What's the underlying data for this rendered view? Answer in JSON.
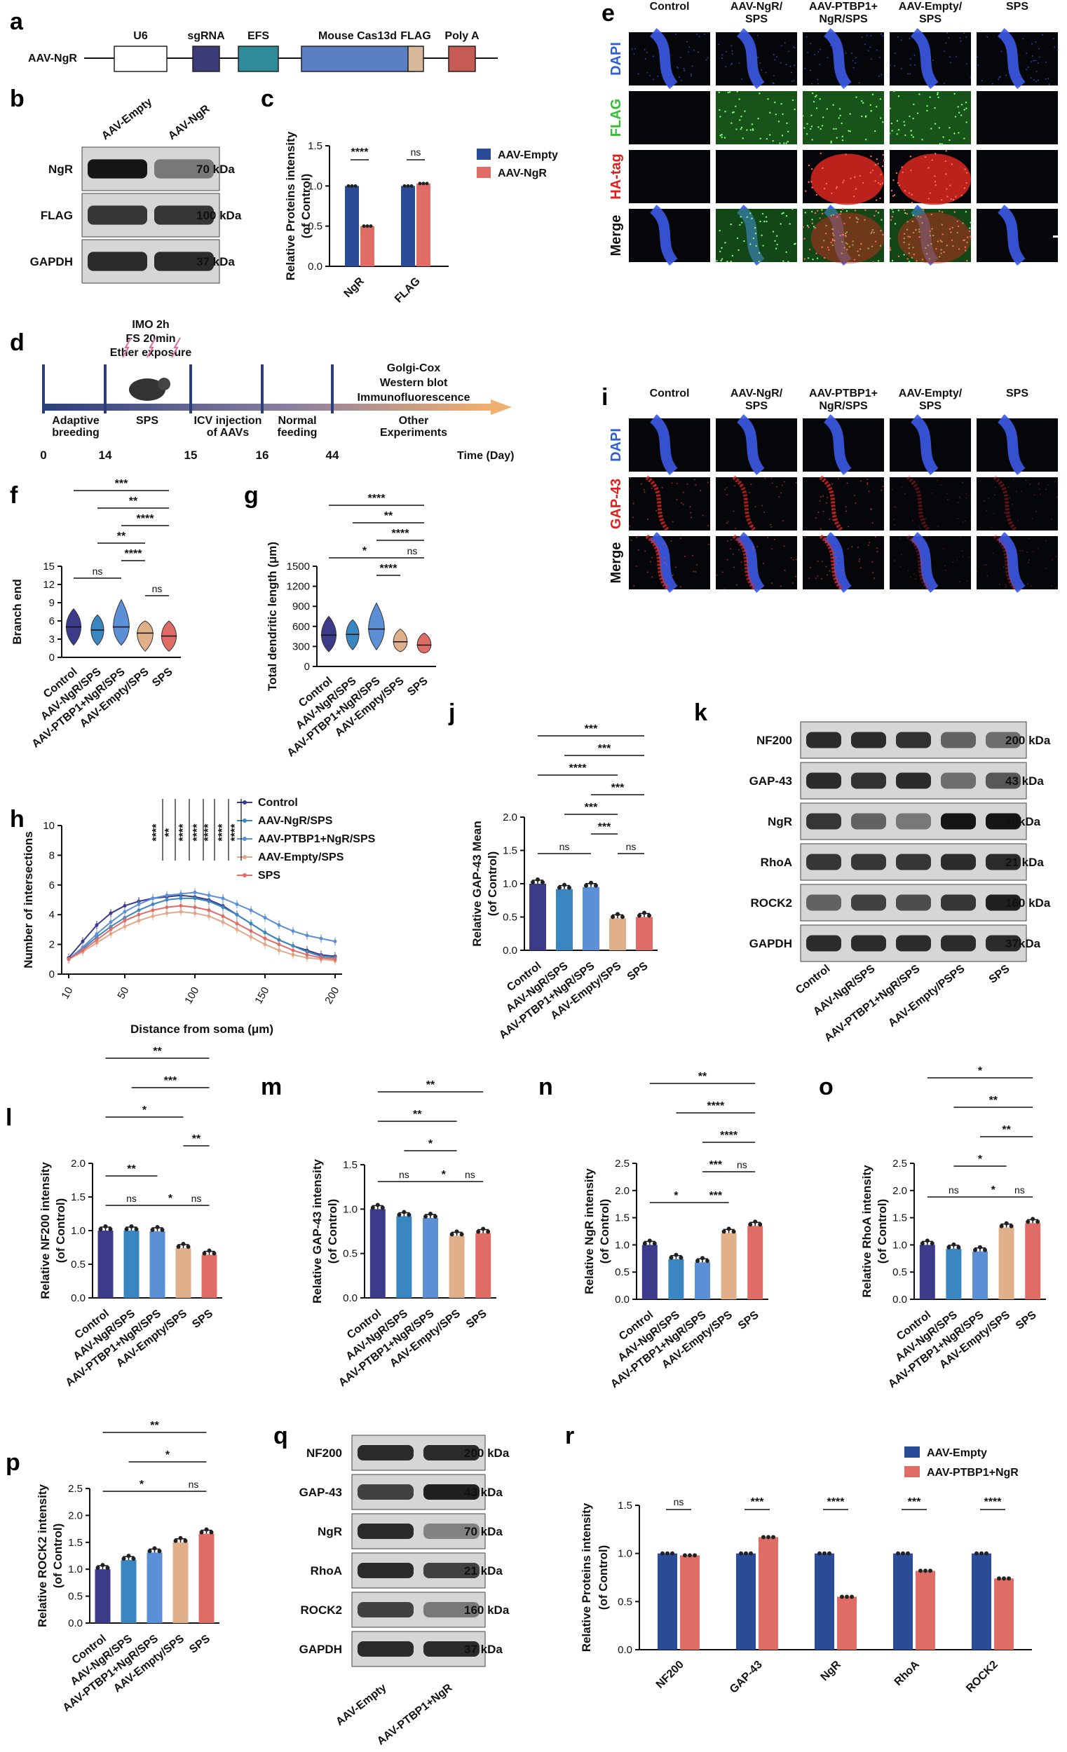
{
  "panel_a": {
    "label": "a",
    "construct": "AAV-NgR",
    "elements": [
      {
        "name": "U6",
        "color": "#ffffff"
      },
      {
        "name": "sgRNA",
        "color": "#3b3b7a"
      },
      {
        "name": "EFS",
        "color": "#2e8b9a"
      },
      {
        "name": "Mouse Cas13d",
        "color": "#5b7fc4"
      },
      {
        "name": "FLAG",
        "color": "#d7b89a"
      },
      {
        "name": "Poly A",
        "color": "#c75b55"
      }
    ]
  },
  "panel_b": {
    "label": "b",
    "columns": [
      "AAV-Empty",
      "AAV-NgR"
    ],
    "rows": [
      {
        "name": "NgR",
        "kda": "70 kDa",
        "intensity": [
          0.95,
          0.5
        ]
      },
      {
        "name": "FLAG",
        "kda": "100 kDa",
        "intensity": [
          0.8,
          0.8
        ]
      },
      {
        "name": "GAPDH",
        "kda": "37 kDa",
        "intensity": [
          0.85,
          0.85
        ]
      }
    ]
  },
  "panel_c": {
    "label": "c",
    "chart_data": {
      "type": "bar",
      "categories": [
        "NgR",
        "FLAG"
      ],
      "series": [
        {
          "name": "AAV-Empty",
          "color": "#2a4b96",
          "values": [
            1.0,
            1.0
          ]
        },
        {
          "name": "AAV-NgR",
          "color": "#e06c66",
          "values": [
            0.5,
            1.03
          ]
        }
      ],
      "ylabel": "Relative Proteins intensity\n(of Control)",
      "ylim": [
        0,
        1.5
      ],
      "yticks": [
        "0.0",
        "0.5",
        "1.0",
        "1.5"
      ],
      "significance": [
        "****",
        "ns"
      ]
    }
  },
  "panel_d": {
    "label": "d",
    "stress": [
      "IMO 2h",
      "FS 20min",
      "Ether exposure"
    ],
    "segments": [
      "Adaptive\nbreeding",
      "SPS",
      "ICV injection\nof AAVs",
      "Normal\nfeeding",
      "Other\nExperiments"
    ],
    "days": [
      "0",
      "14",
      "15",
      "16",
      "44"
    ],
    "experiments": [
      "Golgi-Cox",
      "Western blot",
      "Immunofluorescence"
    ],
    "axis_label": "Time (Day)"
  },
  "panel_e": {
    "label": "e",
    "columns": [
      "Control",
      "AAV-NgR/\nSPS",
      "AAV-PTBP1+\nNgR/SPS",
      "AAV-Empty/\nSPS",
      "SPS"
    ],
    "rows": [
      {
        "name": "DAPI",
        "color": "#2f5fd0"
      },
      {
        "name": "FLAG",
        "color": "#2fbf2f"
      },
      {
        "name": "HA-tag",
        "color": "#e02020"
      },
      {
        "name": "Merge",
        "color": "#111111"
      }
    ]
  },
  "panel_i": {
    "label": "i",
    "columns": [
      "Control",
      "AAV-NgR/\nSPS",
      "AAV-PTBP1+\nNgR/SPS",
      "AAV-Empty/\nSPS",
      "SPS"
    ],
    "rows": [
      {
        "name": "DAPI",
        "color": "#2f5fd0"
      },
      {
        "name": "GAP-43",
        "color": "#e02020"
      },
      {
        "name": "Merge",
        "color": "#111111"
      }
    ]
  },
  "groups": [
    "Control",
    "AAV-NgR/SPS",
    "AAV-PTBP1+NgR/SPS",
    "AAV-Empty/SPS",
    "SPS"
  ],
  "group_colors": [
    "#3b3b8a",
    "#3a86c0",
    "#5b8fd6",
    "#e0b08a",
    "#e06c66"
  ],
  "panel_f": {
    "label": "f",
    "chart_data": {
      "type": "violin",
      "ylabel": "Branch end",
      "ylim": [
        0,
        15
      ],
      "yticks": [
        "0",
        "3",
        "6",
        "9",
        "12",
        "15"
      ],
      "medians": [
        5,
        4.5,
        5,
        4,
        3.5
      ],
      "significance": [
        "***",
        "**",
        "****",
        "**",
        "****",
        "ns",
        "ns"
      ]
    }
  },
  "panel_g": {
    "label": "g",
    "chart_data": {
      "type": "violin",
      "ylabel": "Total dendritic length (μm)",
      "ylim": [
        0,
        1500
      ],
      "yticks": [
        "0",
        "300",
        "600",
        "900",
        "1200",
        "1500"
      ],
      "medians": [
        470,
        480,
        560,
        370,
        320
      ],
      "significance": [
        "****",
        "**",
        "****",
        "*",
        "ns",
        "****"
      ]
    }
  },
  "panel_h": {
    "label": "h",
    "chart_data": {
      "type": "line",
      "x": [
        10,
        20,
        30,
        40,
        50,
        60,
        70,
        80,
        90,
        100,
        110,
        120,
        130,
        140,
        150,
        160,
        170,
        180,
        190,
        200
      ],
      "xticks": [
        "10",
        "50",
        "100",
        "150",
        "200"
      ],
      "xlabel": "Distance from soma  (μm)",
      "ylabel": "Number of intersections",
      "ylim": [
        0,
        10
      ],
      "yticks": [
        "0",
        "2",
        "4",
        "6",
        "8",
        "10"
      ],
      "series": [
        {
          "name": "Control",
          "color": "#3b3b8a",
          "values": [
            1.1,
            2.2,
            3.3,
            4.1,
            4.6,
            4.9,
            5.1,
            5.2,
            5.3,
            5.2,
            5.0,
            4.6,
            4.0,
            3.4,
            2.8,
            2.3,
            1.9,
            1.6,
            1.3,
            1.2
          ]
        },
        {
          "name": "AAV-NgR/SPS",
          "color": "#3a86c0",
          "values": [
            1.0,
            1.7,
            2.5,
            3.2,
            3.8,
            4.3,
            4.7,
            5.0,
            5.1,
            5.1,
            4.9,
            4.5,
            4.0,
            3.4,
            2.8,
            2.3,
            1.9,
            1.5,
            1.2,
            1.1
          ]
        },
        {
          "name": "AAV-PTBP1+NgR/SPS",
          "color": "#5b8fd6",
          "values": [
            1.0,
            1.8,
            2.7,
            3.5,
            4.2,
            4.7,
            5.1,
            5.3,
            5.4,
            5.5,
            5.3,
            5.1,
            4.7,
            4.3,
            3.8,
            3.3,
            2.9,
            2.6,
            2.4,
            2.2
          ]
        },
        {
          "name": "AAV-Empty/SPS",
          "color": "#e0a888",
          "values": [
            1.0,
            1.5,
            2.1,
            2.7,
            3.2,
            3.6,
            3.9,
            4.1,
            4.2,
            4.1,
            3.9,
            3.5,
            3.0,
            2.5,
            2.0,
            1.6,
            1.3,
            1.1,
            1.0,
            0.9
          ]
        },
        {
          "name": "SPS",
          "color": "#e06c66",
          "values": [
            1.0,
            1.6,
            2.3,
            3.0,
            3.6,
            4.0,
            4.3,
            4.5,
            4.6,
            4.5,
            4.3,
            3.9,
            3.4,
            2.9,
            2.4,
            2.0,
            1.6,
            1.3,
            1.1,
            1.0
          ]
        }
      ],
      "significance": [
        "****",
        "**",
        "****",
        "****",
        "****",
        "****",
        "****"
      ]
    }
  },
  "panel_j": {
    "label": "j",
    "chart_data": {
      "type": "bar",
      "ylabel": "Relative GAP-43 Mean\n(of Control)",
      "ylim": [
        0,
        2.0
      ],
      "yticks": [
        "0.0",
        "0.5",
        "1.0",
        "1.5",
        "2.0"
      ],
      "values": [
        1.0,
        0.92,
        0.95,
        0.48,
        0.5
      ],
      "significance": [
        "***",
        "***",
        "****",
        "***",
        "***",
        "ns",
        "ns",
        "***"
      ]
    }
  },
  "panel_k": {
    "label": "k",
    "rows": [
      {
        "name": "NF200",
        "kda": "200 kDa",
        "intensity": [
          0.85,
          0.85,
          0.82,
          0.6,
          0.55
        ]
      },
      {
        "name": "GAP-43",
        "kda": "43 kDa",
        "intensity": [
          0.85,
          0.82,
          0.85,
          0.55,
          0.65
        ]
      },
      {
        "name": "NgR",
        "kda": "70kDa",
        "intensity": [
          0.8,
          0.6,
          0.5,
          0.95,
          0.95
        ]
      },
      {
        "name": "RhoA",
        "kda": "21 kDa",
        "intensity": [
          0.8,
          0.8,
          0.8,
          0.85,
          0.85
        ]
      },
      {
        "name": "ROCK2",
        "kda": "160 kDa",
        "intensity": [
          0.6,
          0.75,
          0.7,
          0.8,
          0.9
        ]
      },
      {
        "name": "GAPDH",
        "kda": "37kDa",
        "intensity": [
          0.85,
          0.85,
          0.85,
          0.85,
          0.85
        ]
      }
    ],
    "columns": [
      "Control",
      "AAV-NgR/SPS",
      "AAV-PTBP1+NgR/SPS",
      "AAV-Empty/PSPS",
      "SPS"
    ]
  },
  "panel_l": {
    "label": "l",
    "chart_data": {
      "type": "bar",
      "ylabel": "Relative NF200 intensity\n(of Control)",
      "ylim": [
        0,
        2.0
      ],
      "yticks": [
        "0.0",
        "0.5",
        "1.0",
        "1.5",
        "2.0"
      ],
      "values": [
        1.0,
        1.0,
        0.99,
        0.74,
        0.64
      ],
      "significance": [
        "**",
        "***",
        "*",
        "**",
        "**",
        "ns",
        "*",
        "ns"
      ]
    }
  },
  "panel_m": {
    "label": "m",
    "chart_data": {
      "type": "bar",
      "ylabel": "Relative GAP-43 intensity\n(of Control)",
      "ylim": [
        0,
        1.5
      ],
      "yticks": [
        "0.0",
        "0.5",
        "1.0",
        "1.5"
      ],
      "values": [
        1.0,
        0.92,
        0.9,
        0.7,
        0.73
      ],
      "significance": [
        "**",
        "**",
        "*",
        "ns",
        "*",
        "ns"
      ]
    }
  },
  "panel_n": {
    "label": "n",
    "chart_data": {
      "type": "bar",
      "ylabel": "Relative NgR intensity\n(of Control)",
      "ylim": [
        0,
        2.5
      ],
      "yticks": [
        "0.0",
        "0.5",
        "1.0",
        "1.5",
        "2.0",
        "2.5"
      ],
      "values": [
        1.0,
        0.74,
        0.68,
        1.22,
        1.35
      ],
      "significance": [
        "**",
        "****",
        "****",
        "***",
        "ns",
        "*",
        "***"
      ]
    }
  },
  "panel_o": {
    "label": "o",
    "chart_data": {
      "type": "bar",
      "ylabel": "Relative RhoA intensity\n(of Control)",
      "ylim": [
        0,
        2.5
      ],
      "yticks": [
        "0.0",
        "0.5",
        "1.0",
        "1.5",
        "2.0",
        "2.5"
      ],
      "values": [
        1.0,
        0.93,
        0.88,
        1.32,
        1.4
      ],
      "significance": [
        "*",
        "**",
        "**",
        "*",
        "ns",
        "*",
        "ns"
      ]
    }
  },
  "panel_p": {
    "label": "p",
    "chart_data": {
      "type": "bar",
      "ylabel": "Relative ROCK2 intensity\n(of Control)",
      "ylim": [
        0,
        2.5
      ],
      "yticks": [
        "0.0",
        "0.5",
        "1.0",
        "1.5",
        "2.0",
        "2.5"
      ],
      "values": [
        1.0,
        1.17,
        1.31,
        1.5,
        1.66
      ],
      "significance": [
        "**",
        "*",
        "*",
        "ns"
      ]
    }
  },
  "panel_q": {
    "label": "q",
    "columns": [
      "AAV-Empty",
      "AAV-PTBP1+NgR"
    ],
    "rows": [
      {
        "name": "NF200",
        "kda": "200 kDa",
        "intensity": [
          0.85,
          0.85
        ]
      },
      {
        "name": "GAP-43",
        "kda": "43 kDa",
        "intensity": [
          0.75,
          0.9
        ]
      },
      {
        "name": "NgR",
        "kda": "70 kDa",
        "intensity": [
          0.85,
          0.45
        ]
      },
      {
        "name": "RhoA",
        "kda": "21 kDa",
        "intensity": [
          0.85,
          0.75
        ]
      },
      {
        "name": "ROCK2",
        "kda": "160 kDa",
        "intensity": [
          0.75,
          0.5
        ]
      },
      {
        "name": "GAPDH",
        "kda": "37 kDa",
        "intensity": [
          0.85,
          0.85
        ]
      }
    ]
  },
  "panel_r": {
    "label": "r",
    "chart_data": {
      "type": "bar",
      "categories": [
        "NF200",
        "GAP-43",
        "NgR",
        "RhoA",
        "ROCK2"
      ],
      "series": [
        {
          "name": "AAV-Empty",
          "color": "#2a4b96",
          "values": [
            1.0,
            1.0,
            1.0,
            1.0,
            1.0
          ]
        },
        {
          "name": "AAV-PTBP1+NgR",
          "color": "#e06c66",
          "values": [
            0.98,
            1.17,
            0.55,
            0.82,
            0.74
          ]
        }
      ],
      "ylabel": "Relative Proteins intensity\n(of Control)",
      "ylim": [
        0,
        1.5
      ],
      "yticks": [
        "0.0",
        "0.5",
        "1.0",
        "1.5"
      ],
      "significance": [
        "ns",
        "***",
        "****",
        "***",
        "****"
      ]
    }
  }
}
